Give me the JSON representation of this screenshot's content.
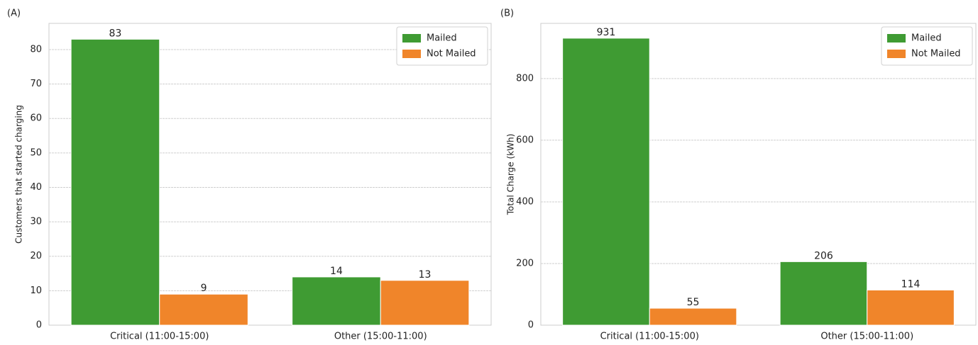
{
  "chart_data": [
    {
      "type": "bar",
      "panel": "(A)",
      "ylabel": "Customers that started charging",
      "categories": [
        "Critical (11:00-15:00)",
        "Other (15:00-11:00)"
      ],
      "series": [
        {
          "name": "Mailed",
          "color": "#3f9b33",
          "values": [
            83,
            14
          ]
        },
        {
          "name": "Not Mailed",
          "color": "#f0852a",
          "values": [
            9,
            13
          ]
        }
      ],
      "ylim": [
        0,
        87.6
      ],
      "yticks": [
        0,
        10,
        20,
        30,
        40,
        50,
        60,
        70,
        80
      ],
      "grid": true,
      "legend": "upper right"
    },
    {
      "type": "bar",
      "panel": "(B)",
      "ylabel": "Total Charge (kWh)",
      "categories": [
        "Critical (11:00-15:00)",
        "Other (15:00-11:00)"
      ],
      "series": [
        {
          "name": "Mailed",
          "color": "#3f9b33",
          "values": [
            931,
            206
          ]
        },
        {
          "name": "Not Mailed",
          "color": "#f0852a",
          "values": [
            55,
            114
          ]
        }
      ],
      "ylim": [
        0,
        979
      ],
      "yticks": [
        0,
        200,
        400,
        600,
        800
      ],
      "grid": true,
      "legend": "upper right"
    }
  ]
}
